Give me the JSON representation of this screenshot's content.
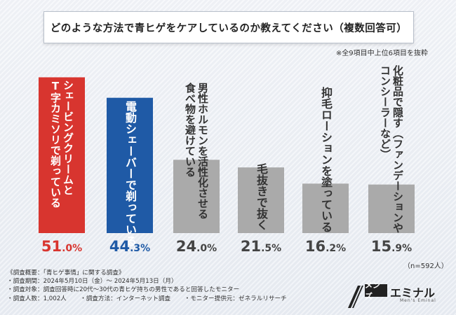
{
  "title": "どのような方法で青ヒゲをケアしているのか教えてください（複数回答可）",
  "note": "※全9項目中上位6項目を抜粋",
  "n_label": "（n=592人）",
  "chart_data": {
    "type": "bar",
    "title": "どのような方法で青ヒゲをケアしているのか教えてください（複数回答可）",
    "categories": [
      "シェービングクリームとT字カミソリで剃っている",
      "電動シェーバーで剃っている",
      "男性ホルモンを活性化させる食べ物を避けている",
      "毛抜きで抜く",
      "抑毛ローションを塗っている",
      "化粧品で隠す（ファンデーションやコンシーラーなど）"
    ],
    "values": [
      51.0,
      44.3,
      24.0,
      21.5,
      16.2,
      15.9
    ],
    "value_labels": [
      {
        "num": "51",
        "unit": ".0%"
      },
      {
        "num": "44",
        "unit": ".3%"
      },
      {
        "num": "24",
        "unit": ".0%"
      },
      {
        "num": "21",
        "unit": ".5%"
      },
      {
        "num": "16",
        "unit": ".2%"
      },
      {
        "num": "15",
        "unit": ".9%"
      }
    ],
    "label_lines": [
      [
        "シェービングクリームと",
        "T字カミソリで剃っている"
      ],
      [
        "電動シェーバーで剃っている"
      ],
      [
        "男性ホルモンを活性化させる",
        "食べ物を避けている"
      ],
      [
        "毛抜きで抜く"
      ],
      [
        "抑毛ローションを塗っている"
      ],
      [
        "化粧品で隠す（ファンデーションや",
        "コンシーラーなど）"
      ]
    ],
    "colors": [
      "#d8352f",
      "#1f5aa6",
      "#aaaaaa",
      "#aaaaaa",
      "#aaaaaa",
      "#aaaaaa"
    ],
    "ylim": [
      0,
      55
    ]
  },
  "survey": {
    "heading": "《調査概要：「青ヒゲ事情」に関する調査》",
    "period": "・調査期間：2024年5月10日（金）～ 2024年5月13日（月）",
    "target": "・調査対象：調査回答時に20代～30代の青ヒゲ持ちの男性であると回答したモニター",
    "count": "・調査人数：1,002人",
    "method": "・調査方法：インターネット調査",
    "provider": "・モニター提供元：ゼネラルリサーチ"
  },
  "logo": {
    "box_text": "メンズ",
    "word": "エミナル",
    "sub": "Men's Eminal"
  }
}
